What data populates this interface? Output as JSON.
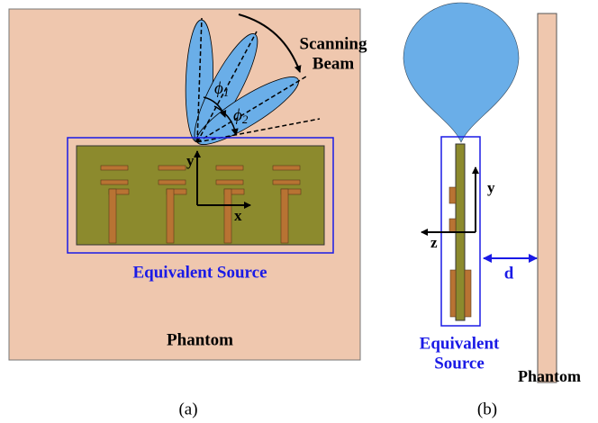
{
  "panel_a": {
    "beam_label": [
      "Scanning",
      "Beam"
    ],
    "angles": [
      {
        "symbol": "ϕ",
        "sub": "1"
      },
      {
        "symbol": "ϕ",
        "sub": "2"
      }
    ],
    "axes": {
      "y": "y",
      "x": "x"
    },
    "source_label": "Equivalent Source",
    "phantom_label": "Phantom",
    "caption": "(a)"
  },
  "panel_b": {
    "axes": {
      "y": "y",
      "z": "z"
    },
    "distance_label": "d",
    "source_label": [
      "Equivalent",
      "Source"
    ],
    "phantom_label": "Phantom",
    "caption": "(b)"
  }
}
